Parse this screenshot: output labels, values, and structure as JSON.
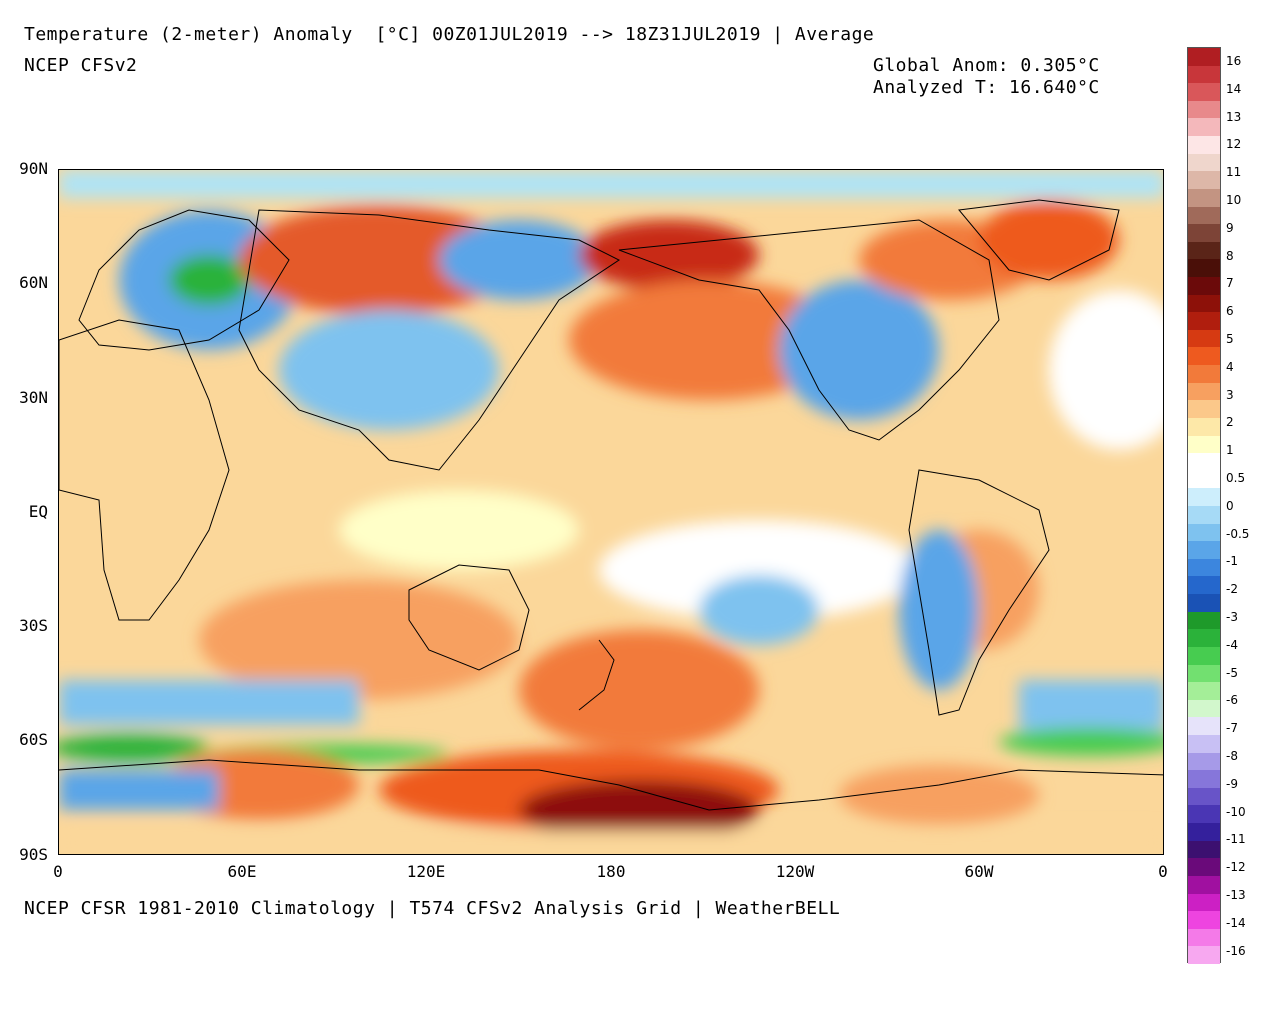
{
  "header": {
    "title": "Temperature (2-meter) Anomaly  [°C] 00Z01JUL2019 --> 18Z31JUL2019 | Average",
    "model": "NCEP CFSv2",
    "global_anom": "Global Anom: 0.305°C",
    "analyzed_t": "Analyzed T: 16.640°C"
  },
  "footer": "NCEP CFSR 1981-2010 Climatology | T574 CFSv2 Analysis Grid | WeatherBELL",
  "axes": {
    "lat_labels": [
      "90N",
      "60N",
      "30N",
      "EQ",
      "30S",
      "60S",
      "90S"
    ],
    "lon_labels": [
      "0",
      "60E",
      "120E",
      "180",
      "120W",
      "60W",
      "0"
    ]
  },
  "colorbar": {
    "labels": [
      "16",
      "14",
      "13",
      "12",
      "11",
      "10",
      "9",
      "8",
      "7",
      "6",
      "5",
      "4",
      "3",
      "2",
      "1",
      "0.5",
      "0",
      "-0.5",
      "-1",
      "-2",
      "-3",
      "-4",
      "-5",
      "-6",
      "-7",
      "-8",
      "-9",
      "-10",
      "-11",
      "-12",
      "-13",
      "-14",
      "-16"
    ],
    "colors": [
      "#b01e22",
      "#c8363a",
      "#d9575a",
      "#e8898b",
      "#f4b8bb",
      "#fde6e6",
      "#efd6cc",
      "#ddb7a8",
      "#c39482",
      "#a06a5a",
      "#7d4437",
      "#5a2418",
      "#4a0f08",
      "#6b0a0a",
      "#8d1109",
      "#b01e0e",
      "#d63a12",
      "#ee5a1f",
      "#f27a3a",
      "#f7a060",
      "#fbc88a",
      "#fde8a8",
      "#ffffc8",
      "#ffffff",
      "#ffffff",
      "#cdeefc",
      "#a6daf6",
      "#7ec2ef",
      "#5aa5e8",
      "#3c86de",
      "#2567cc",
      "#1a52b5",
      "#1e9a2a",
      "#2bb23a",
      "#47cc50",
      "#72e070",
      "#a4ee98",
      "#d2f7cc",
      "#e6e3fa",
      "#c8c0f4",
      "#a69ae8",
      "#8676da",
      "#6854c8",
      "#4a36b4",
      "#34209c",
      "#3c1070",
      "#6a0a7a",
      "#a010a0",
      "#cc20c4",
      "#ee44e0",
      "#f47ae8",
      "#f7a8f0"
    ]
  }
}
